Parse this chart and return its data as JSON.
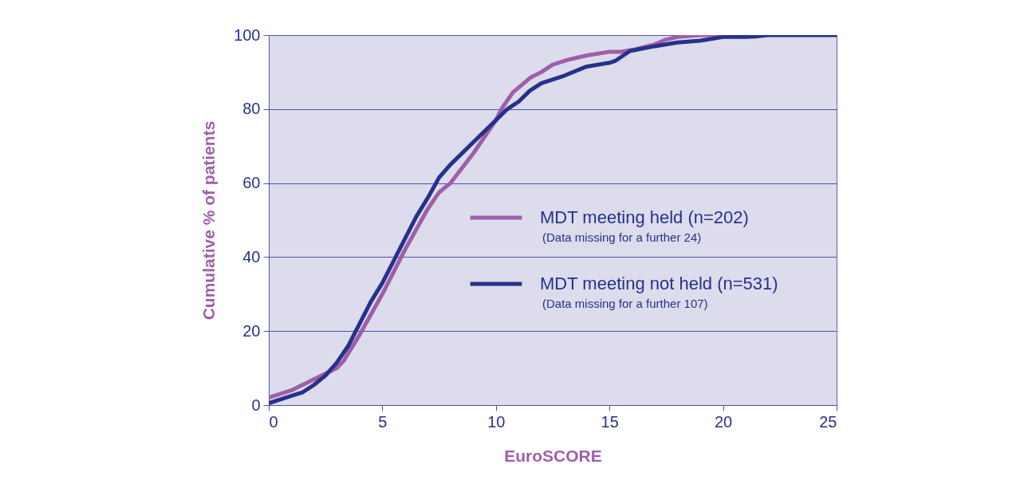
{
  "chart_data": {
    "type": "line",
    "xlabel": "EuroSCORE",
    "ylabel": "Cumulative % of patients",
    "xlim": [
      0,
      25
    ],
    "xticks": [
      0,
      5,
      10,
      15,
      20,
      25
    ],
    "ylim": [
      0,
      100
    ],
    "yticks": [
      0,
      20,
      40,
      60,
      80,
      100
    ],
    "grid": "y",
    "legend": "right",
    "marker": "none",
    "line_style": "solid",
    "annotations": [
      "(Data missing for a further 24)",
      "(Data missing for a further 107)"
    ],
    "series": [
      {
        "name": "MDT meeting held (n=202)",
        "color": "#9e5fa8",
        "x": [
          0,
          1,
          2,
          3,
          3.3,
          4,
          5,
          6,
          7,
          7.5,
          8,
          9,
          10,
          10.24,
          10.75,
          11.5,
          12,
          12.5,
          13.1,
          14,
          15,
          15.5,
          16,
          17,
          17.5,
          18,
          19,
          21
        ],
        "values": [
          2,
          4,
          7,
          10,
          12,
          19,
          30,
          42,
          53,
          57.5,
          60,
          68,
          77,
          80,
          84.5,
          88.4,
          90,
          92,
          93.2,
          94.5,
          95.5,
          95.5,
          96,
          97.5,
          98.8,
          99.5,
          100,
          100
        ]
      },
      {
        "name": "MDT meeting not held (n=531)",
        "color": "#27318b",
        "x": [
          0,
          1,
          1.5,
          2,
          2.5,
          3,
          3.5,
          4,
          4.5,
          5,
          5.5,
          6,
          6.5,
          7,
          7.5,
          8,
          9,
          10,
          10.5,
          11,
          11.5,
          12,
          13,
          14,
          15,
          15.25,
          15.9,
          17,
          18,
          19,
          20,
          21,
          21.4,
          22,
          25
        ],
        "values": [
          0.5,
          2.5,
          3.5,
          5.5,
          8,
          11.5,
          16,
          22,
          28,
          33,
          39,
          45,
          51,
          56,
          61.5,
          65,
          71,
          77,
          80,
          82,
          85,
          87,
          89,
          91.5,
          92.5,
          93,
          95.7,
          97,
          98,
          98.5,
          99.5,
          99.5,
          99.6,
          100,
          100
        ]
      }
    ]
  }
}
